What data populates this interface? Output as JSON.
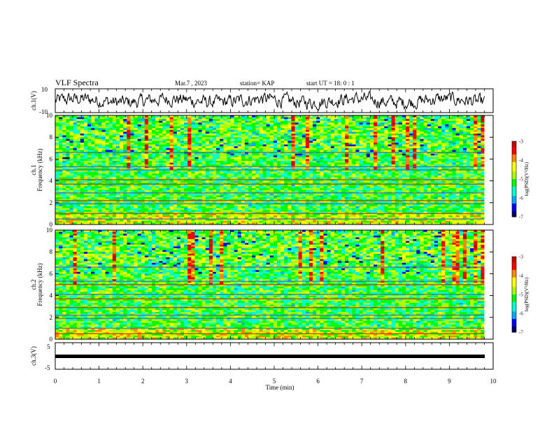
{
  "header": {
    "title": "VLF Spectra",
    "date": "Mar.7 , 2023",
    "station": "station= KAP",
    "start_ut": "start UT = 18: 0 : 1"
  },
  "panels": {
    "ch1_wave_label": "ch.1(V)",
    "ch1_spec_label": "ch.1",
    "ch2_spec_label": "ch.2",
    "ch3_wave_label": "ch.3(V)",
    "freq_label": "Frequency (kHz)",
    "x_label": "Time (min)",
    "colorbar_label": "log(PSD)(V²/Hz)"
  },
  "chart_data": [
    {
      "type": "line",
      "title": "VLF Spectra",
      "ylabel": "ch.1(V)",
      "ylim": [
        -10,
        10
      ],
      "yticks": [
        -10,
        10
      ],
      "xlim": [
        0,
        10
      ],
      "x_end": 9.8,
      "description_level": "noisy waveform oscillating around 0 V, approx -7..+8 V"
    },
    {
      "type": "heatmap",
      "ylabel": "Frequency (kHz)",
      "channel": "ch.1",
      "ylim": [
        0,
        10
      ],
      "yticks": [
        0,
        2,
        4,
        6,
        8,
        10
      ],
      "xlim": [
        0,
        10
      ],
      "x_end": 9.8,
      "colorbar": {
        "label": "log(PSD)(V²/Hz)",
        "range": [
          -7,
          -3
        ],
        "ticks": [
          -3,
          -4,
          -5,
          -6,
          -7
        ]
      }
    },
    {
      "type": "heatmap",
      "ylabel": "Frequency (kHz)",
      "channel": "ch.2",
      "ylim": [
        0,
        10
      ],
      "yticks": [
        0,
        2,
        4,
        6,
        8,
        10
      ],
      "xlim": [
        0,
        10
      ],
      "x_end": 9.8,
      "colorbar": {
        "label": "log(PSD)(V²/Hz)",
        "range": [
          -7,
          -3
        ],
        "ticks": [
          -3,
          -4,
          -5,
          -6,
          -7
        ]
      }
    },
    {
      "type": "line",
      "ylabel": "ch.3(V)",
      "ylim": [
        -5,
        5
      ],
      "yticks": [
        -5,
        5
      ],
      "xlabel": "Time (min)",
      "xlim": [
        0,
        10
      ],
      "x_end": 9.8,
      "xticks": [
        0,
        1,
        2,
        3,
        4,
        5,
        6,
        7,
        8,
        9,
        10
      ],
      "description_level": "nearly constant signal at about -1 V with narrow thickness"
    }
  ],
  "colors": {
    "axis": "#000000",
    "colormap": [
      "#000066",
      "#0000ff",
      "#00aaff",
      "#00ffcc",
      "#00ff00",
      "#aaff00",
      "#ffff00",
      "#ff8800",
      "#ff0000",
      "#cc0000"
    ]
  }
}
